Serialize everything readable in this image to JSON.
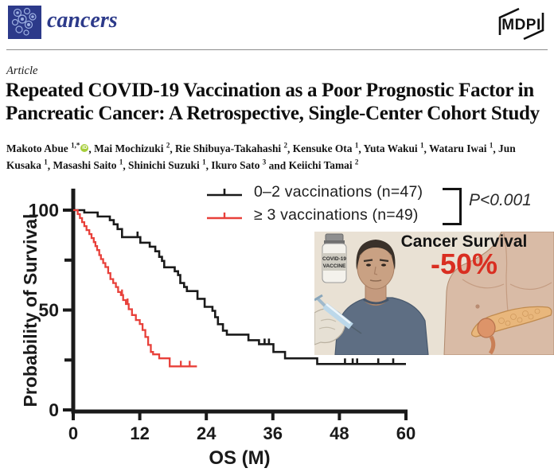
{
  "header": {
    "journal": "cancers",
    "publisher": "MDPI"
  },
  "article": {
    "label": "Article",
    "title_lines": [
      "Repeated COVID-19 Vaccination as a Poor Prognostic Factor in",
      "Pancreatic Cancer: A Retrospective, Single-Center Cohort Study"
    ],
    "authors": [
      {
        "name": "Makoto Abue",
        "sup": "1,*",
        "orcid": true,
        "sep": ", "
      },
      {
        "name": "Mai Mochizuki",
        "sup": "2",
        "sep": ", "
      },
      {
        "name": "Rie Shibuya-Takahashi",
        "sup": "2",
        "sep": ", "
      },
      {
        "name": "Kensuke Ota",
        "sup": "1",
        "sep": ", "
      },
      {
        "name": "Yuta Wakui",
        "sup": "1",
        "sep": ", "
      },
      {
        "name": "Wataru Iwai",
        "sup": "1",
        "sep": ", "
      },
      {
        "name": "Jun Kusaka",
        "sup": "1",
        "sep": ", "
      },
      {
        "name": "Masashi Saito",
        "sup": "1",
        "sep": ", "
      },
      {
        "name": "Shinichi Suzuki",
        "sup": "1",
        "sep": ", "
      },
      {
        "name": "Ikuro Sato",
        "sup": "3",
        "sep": " and "
      },
      {
        "name": "Keiichi Tamai",
        "sup": "2",
        "sep": ""
      }
    ]
  },
  "chart_data": {
    "type": "line",
    "subtype": "kaplan-meier",
    "title": "",
    "xlabel": "OS (M)",
    "ylabel": "Probability of Survival",
    "xlim": [
      0,
      60
    ],
    "ylim": [
      0,
      100
    ],
    "xticks": [
      0,
      12,
      24,
      36,
      48,
      60
    ],
    "yticks": [
      0,
      50,
      100
    ],
    "yticks_minor": [
      25,
      75
    ],
    "grid": false,
    "legend_position": "top-right",
    "annotation": "P<0.001",
    "legend": [
      {
        "label": "0–2 vaccinations (n=47)",
        "color": "#1a1a1a"
      },
      {
        "label": "≥ 3 vaccinations (n=49)",
        "color": "#e8403a"
      }
    ],
    "series": [
      {
        "name": "0–2 vaccinations (n=47)",
        "color": "#1a1a1a",
        "stroke_width": 2.6,
        "steps": [
          [
            0,
            100
          ],
          [
            2,
            98.8
          ],
          [
            4.4,
            96.8
          ],
          [
            6.6,
            95
          ],
          [
            7.3,
            92.9
          ],
          [
            8,
            90.5
          ],
          [
            8.8,
            86.5
          ],
          [
            12.1,
            83.7
          ],
          [
            13.8,
            81.7
          ],
          [
            14.8,
            79.4
          ],
          [
            15.5,
            76.6
          ],
          [
            16,
            74.6
          ],
          [
            16.4,
            71.4
          ],
          [
            18.3,
            69.4
          ],
          [
            18.9,
            67.5
          ],
          [
            19.3,
            63.5
          ],
          [
            20,
            61.5
          ],
          [
            20.5,
            59.5
          ],
          [
            22.4,
            55.6
          ],
          [
            23.7,
            51.6
          ],
          [
            25.1,
            49.6
          ],
          [
            25.6,
            46.4
          ],
          [
            26.1,
            42.9
          ],
          [
            27,
            39.7
          ],
          [
            27.7,
            37.7
          ],
          [
            31.6,
            34.9
          ],
          [
            33.5,
            32.9
          ],
          [
            36.1,
            29
          ],
          [
            38.2,
            25.8
          ],
          [
            44,
            23
          ],
          [
            60,
            23
          ]
        ],
        "censors": [
          [
            11.6,
            86.5
          ],
          [
            34.5,
            32.9
          ],
          [
            35.3,
            32.9
          ],
          [
            49,
            23
          ],
          [
            50.4,
            23
          ],
          [
            51.2,
            23
          ],
          [
            55,
            23
          ],
          [
            57.7,
            23
          ]
        ]
      },
      {
        "name": "≥ 3 vaccinations (n=49)",
        "color": "#e8403a",
        "stroke_width": 2.3,
        "steps": [
          [
            0,
            100
          ],
          [
            0.8,
            98
          ],
          [
            1.2,
            96
          ],
          [
            1.6,
            94
          ],
          [
            2,
            92
          ],
          [
            2.4,
            90
          ],
          [
            2.9,
            88
          ],
          [
            3.3,
            86
          ],
          [
            3.7,
            84
          ],
          [
            4,
            82
          ],
          [
            4.3,
            80
          ],
          [
            4.7,
            77.5
          ],
          [
            5,
            75.5
          ],
          [
            5.4,
            73.5
          ],
          [
            5.8,
            71.5
          ],
          [
            6.3,
            68.5
          ],
          [
            6.7,
            65.5
          ],
          [
            7.2,
            63.5
          ],
          [
            7.7,
            61.5
          ],
          [
            8.1,
            59
          ],
          [
            8.6,
            57.5
          ],
          [
            9,
            55
          ],
          [
            9.5,
            53
          ],
          [
            10,
            50.4
          ],
          [
            10.6,
            47.5
          ],
          [
            11.3,
            45
          ],
          [
            12,
            43
          ],
          [
            12.5,
            40
          ],
          [
            13,
            36.5
          ],
          [
            13.5,
            32.5
          ],
          [
            14,
            29
          ],
          [
            14.4,
            27.8
          ],
          [
            15.5,
            25.8
          ],
          [
            17.4,
            21.8
          ],
          [
            22.3,
            21.8
          ]
        ],
        "censors": [
          [
            8.8,
            57.5
          ],
          [
            9.8,
            53
          ],
          [
            19.4,
            21.8
          ],
          [
            21,
            21.8
          ]
        ]
      }
    ]
  },
  "inset": {
    "caption": "Cancer Survival",
    "value": "-50%",
    "value_color": "#d92e21",
    "vial_label_line1": "COVID-19",
    "vial_label_line2": "VACCINE"
  }
}
